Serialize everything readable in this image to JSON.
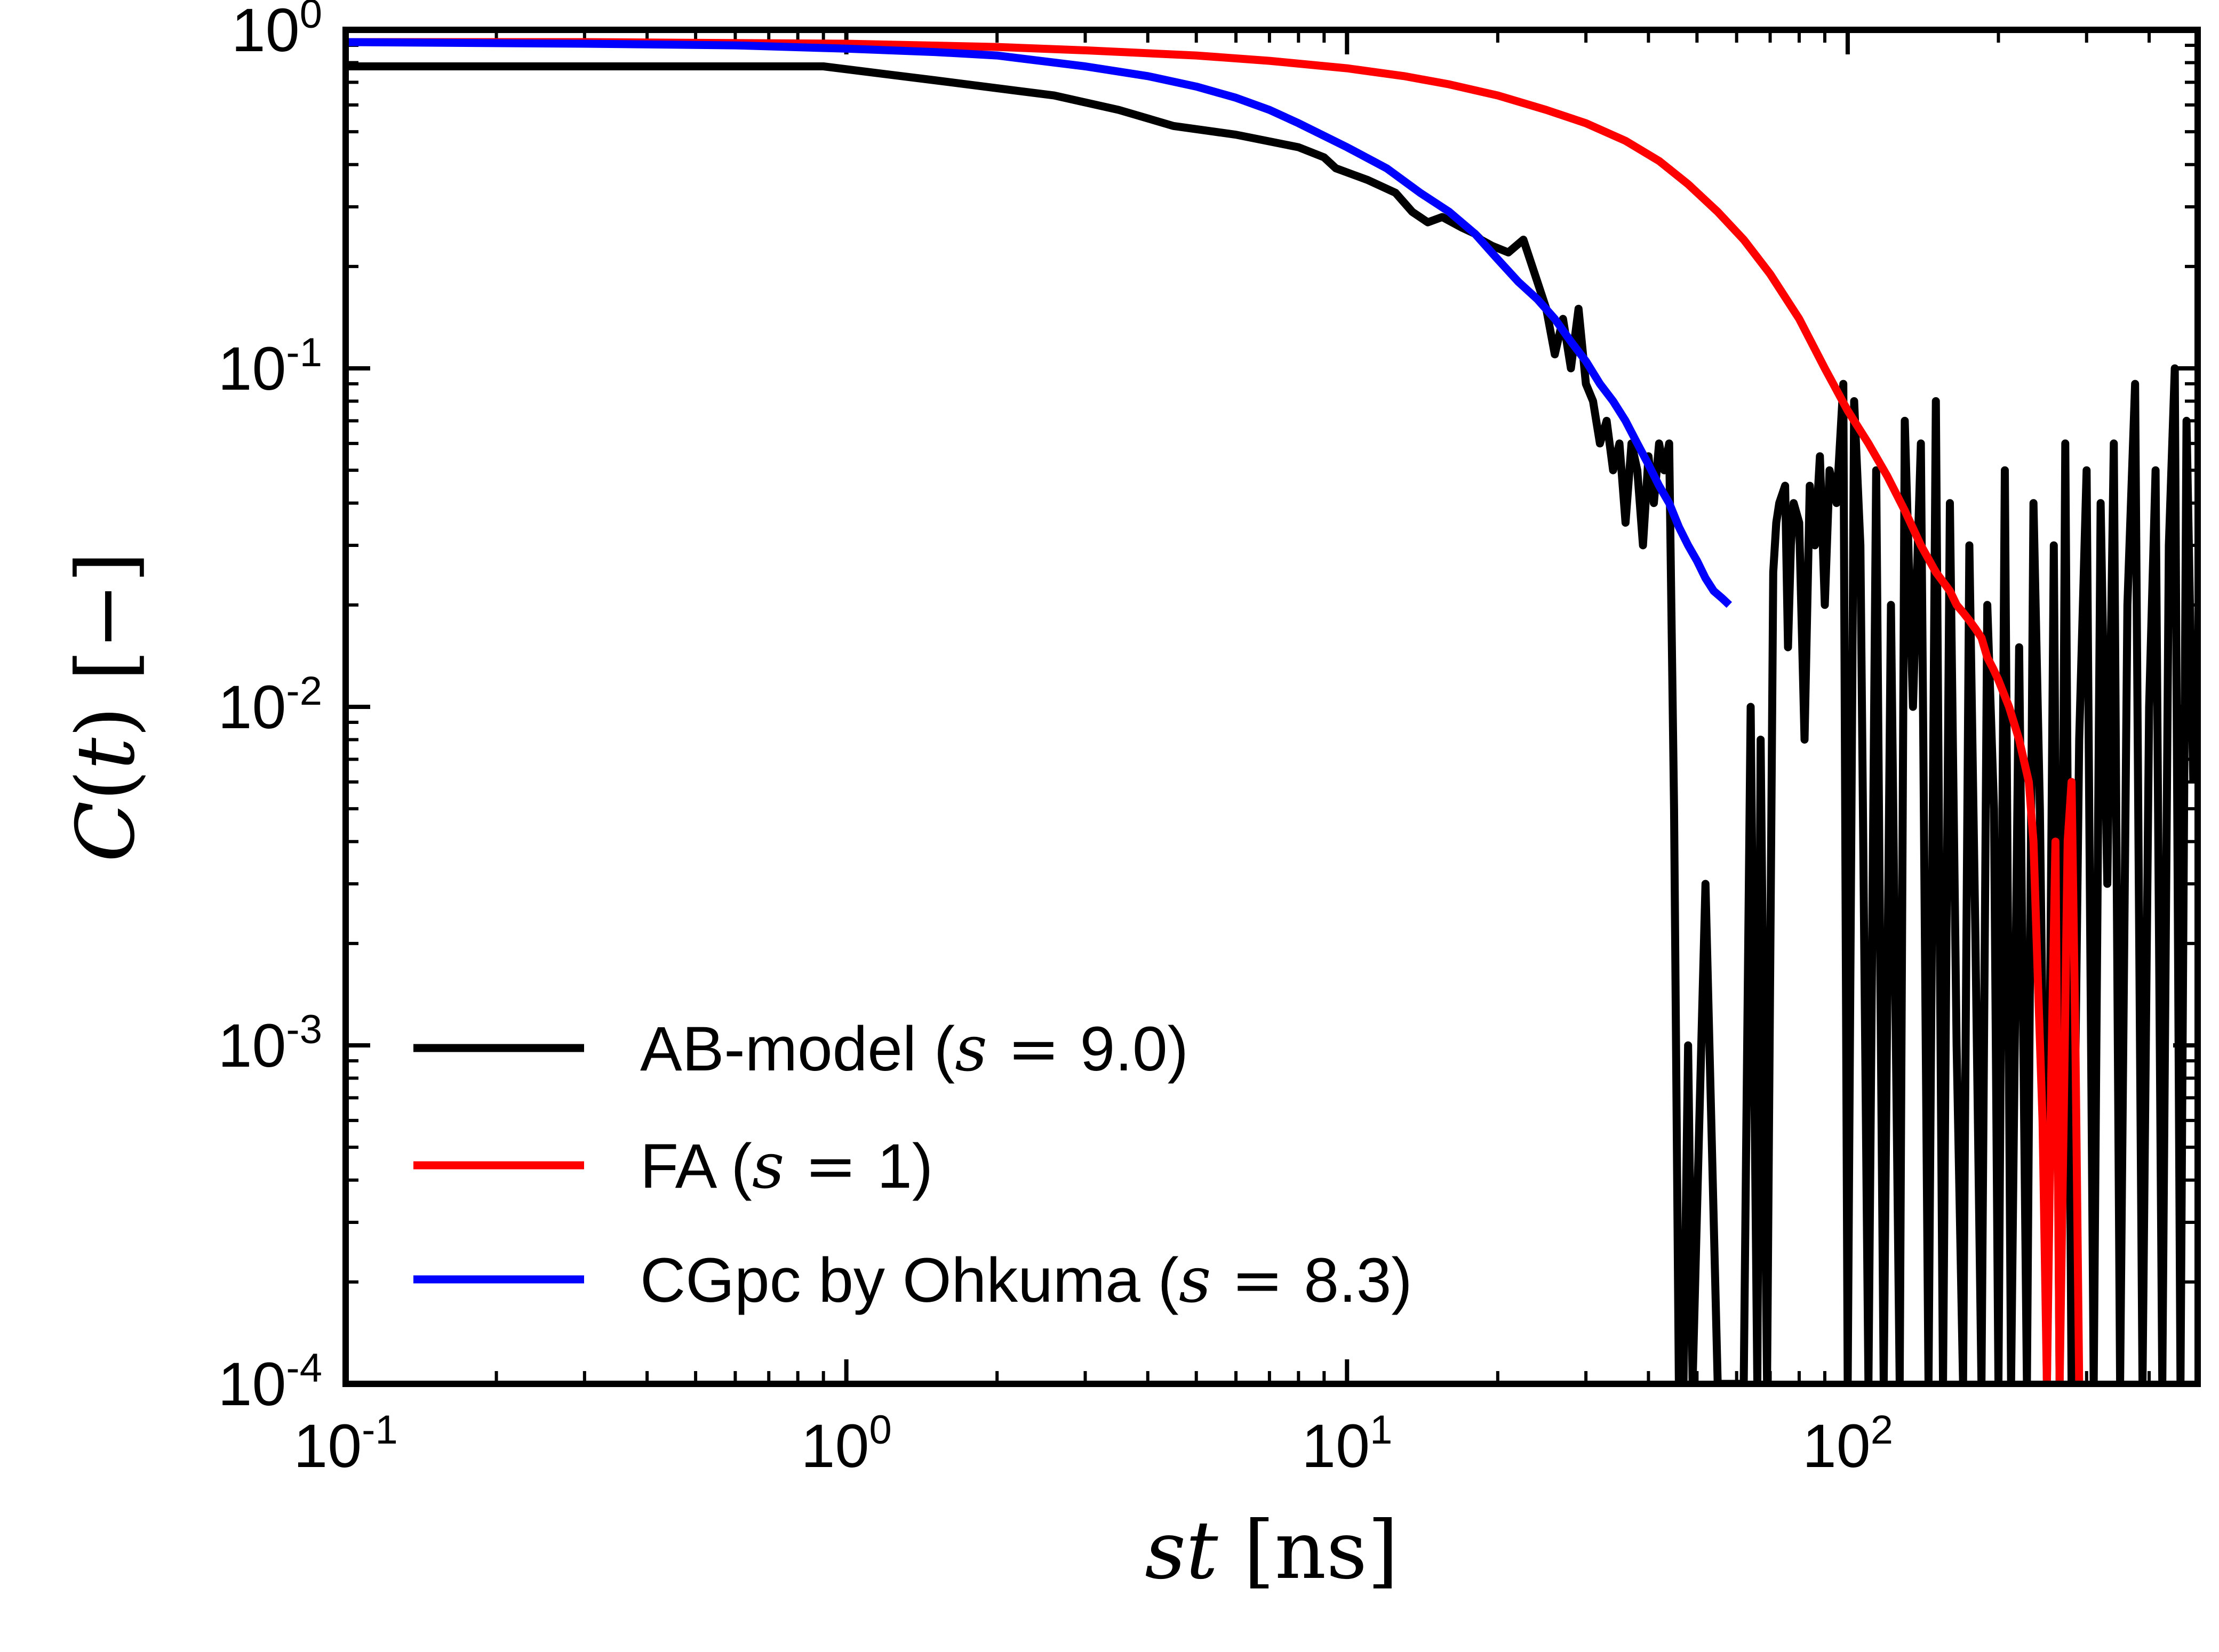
{
  "chart_data": {
    "type": "line",
    "xscale": "log",
    "yscale": "log",
    "xlim": [
      0.1,
      500
    ],
    "ylim": [
      0.0001,
      1
    ],
    "xlabel": "st [ns]",
    "ylabel": "C(t) [−]",
    "x_ticks": [
      {
        "base": "10",
        "exp": "-1",
        "value": 0.1
      },
      {
        "base": "10",
        "exp": "0",
        "value": 1
      },
      {
        "base": "10",
        "exp": "1",
        "value": 10
      },
      {
        "base": "10",
        "exp": "2",
        "value": 100
      }
    ],
    "y_ticks": [
      {
        "base": "10",
        "exp": "0",
        "value": 1
      },
      {
        "base": "10",
        "exp": "-1",
        "value": 0.1
      },
      {
        "base": "10",
        "exp": "-2",
        "value": 0.01
      },
      {
        "base": "10",
        "exp": "-3",
        "value": 0.001
      },
      {
        "base": "10",
        "exp": "-4",
        "value": 0.0001
      }
    ],
    "grid": false,
    "legend_position": "lower-left",
    "series": [
      {
        "name": "AB-model (s = 9.0)",
        "name_text": "AB-model (",
        "name_param": "s",
        "name_value": "9.0",
        "color": "#000000",
        "x": [
          0.1,
          0.3,
          0.9,
          1.5,
          2.6,
          3.5,
          4.5,
          6.0,
          8.0,
          9.0,
          9.5,
          11.0,
          12.5,
          13.5,
          14.5,
          15.5,
          17.0,
          18.0,
          18.5,
          19.5,
          21.0,
          22.5,
          24.0,
          25.0,
          26.0,
          27.0,
          28.0,
          29.0,
          30.0,
          31.0,
          32.0,
          33.0,
          34.0,
          35.0,
          36.0,
          37.0,
          38.0,
          39.0,
          40.0,
          41.0,
          42.0,
          43.0,
          44.0,
          45.0,
          46.0,
          47.0,
          48.0,
          49.0,
          51.0,
          52.0,
          55.0,
          58.0,
          62.0,
          64.0,
          66.0,
          67.0,
          69.0,
          71.0,
          72.0,
          73.0,
          75.0,
          76.0,
          77.0,
          78.0,
          80.0,
          82.0,
          84.0,
          86.0,
          88.0,
          90.0,
          92.0,
          95.0,
          98.0,
          100.0,
          103.0,
          106.0,
          110.0,
          114.0,
          118.0,
          122.0,
          127.0,
          130.0,
          135.0,
          140.0,
          145.0,
          150.0,
          155.0,
          160.0,
          165.0,
          170.0,
          175.0,
          180.0,
          185.0,
          190.0,
          196.0,
          200.0,
          206.0,
          212.0,
          220.0,
          228.0,
          235.0,
          242.0,
          250.0,
          258.0,
          265.0,
          272.0,
          280.0,
          290.0,
          300.0,
          310.0,
          320.0,
          330.0,
          340.0,
          350.0,
          362.0,
          375.0,
          388.0,
          400.0,
          412.0,
          425.0,
          438.0,
          450.0,
          462.0,
          475.0,
          490.0
        ],
        "y": [
          0.78,
          0.78,
          0.78,
          0.71,
          0.64,
          0.58,
          0.52,
          0.49,
          0.45,
          0.42,
          0.39,
          0.36,
          0.33,
          0.29,
          0.27,
          0.28,
          0.26,
          0.25,
          0.24,
          0.23,
          0.22,
          0.24,
          0.18,
          0.15,
          0.11,
          0.14,
          0.1,
          0.15,
          0.09,
          0.08,
          0.06,
          0.07,
          0.05,
          0.06,
          0.035,
          0.06,
          0.05,
          0.03,
          0.055,
          0.04,
          0.06,
          0.05,
          0.06,
          0.005,
          0.0001,
          0.0001,
          0.001,
          0.0001,
          0.001,
          0.003,
          0.0001,
          0.0001,
          0.0001,
          0.01,
          0.0001,
          0.008,
          0.0001,
          0.025,
          0.035,
          0.04,
          0.045,
          0.015,
          0.03,
          0.04,
          0.035,
          0.008,
          0.045,
          0.03,
          0.055,
          0.02,
          0.05,
          0.04,
          0.09,
          0.0001,
          0.08,
          0.03,
          0.0001,
          0.05,
          0.0001,
          0.02,
          0.0001,
          0.07,
          0.01,
          0.06,
          0.0001,
          0.08,
          0.0001,
          0.04,
          0.001,
          0.0001,
          0.03,
          0.002,
          0.0001,
          0.02,
          0.005,
          0.0001,
          0.05,
          0.0001,
          0.015,
          0.0001,
          0.04,
          0.005,
          0.0001,
          0.03,
          0.0001,
          0.06,
          0.0001,
          0.008,
          0.05,
          0.0001,
          0.04,
          0.003,
          0.06,
          0.0001,
          0.02,
          0.09,
          0.0001,
          0.01,
          0.05,
          0.0001,
          0.03,
          0.1,
          0.0001,
          0.07,
          0.006
        ],
        "line_width": 15
      },
      {
        "name": "FA (s = 1)",
        "name_text": "FA (",
        "name_param": "s",
        "name_value": "1",
        "color": "#ff0000",
        "x": [
          0.1,
          0.3,
          1,
          2,
          3,
          5,
          7,
          10,
          13,
          16,
          20,
          25,
          30,
          36,
          42,
          48,
          55,
          62,
          70,
          80,
          90,
          100,
          110,
          120,
          130,
          140,
          150,
          160,
          165,
          170,
          175,
          180,
          185,
          190,
          195,
          200,
          210,
          220,
          230,
          235,
          240,
          245,
          250,
          255,
          260,
          265,
          270,
          275,
          280,
          285,
          290,
          295
        ],
        "y": [
          0.92,
          0.92,
          0.91,
          0.89,
          0.87,
          0.84,
          0.81,
          0.77,
          0.73,
          0.69,
          0.64,
          0.58,
          0.53,
          0.47,
          0.41,
          0.35,
          0.29,
          0.24,
          0.19,
          0.14,
          0.1,
          0.075,
          0.06,
          0.048,
          0.038,
          0.03,
          0.025,
          0.022,
          0.02,
          0.019,
          0.018,
          0.017,
          0.016,
          0.014,
          0.013,
          0.012,
          0.01,
          0.008,
          0.006,
          0.004,
          0.0015,
          0.0006,
          0.0001,
          0.0008,
          0.004,
          0.0001,
          0.0006,
          0.004,
          0.006,
          0.001,
          0.0001,
          0.0001
        ],
        "line_width": 15
      },
      {
        "name": "CGpc by Ohkuma (s = 8.3)",
        "name_text": "CGpc by Ohkuma (",
        "name_param": "s",
        "name_value": "8.3",
        "color": "#0000ff",
        "x": [
          0.1,
          0.3,
          0.6,
          1.0,
          1.5,
          2.0,
          3.0,
          4.0,
          5.0,
          6.0,
          7.0,
          8.0,
          10.0,
          12.0,
          14.0,
          16.0,
          18.0,
          20.0,
          22.0,
          24.0,
          26.0,
          28.0,
          30.0,
          32.0,
          34.0,
          36.0,
          38.0,
          40.0,
          42.0,
          44.0,
          46.0,
          48.0,
          50.0,
          52.0,
          54.0,
          56.0,
          58.0
        ],
        "y": [
          0.92,
          0.91,
          0.9,
          0.88,
          0.86,
          0.84,
          0.78,
          0.73,
          0.68,
          0.63,
          0.58,
          0.53,
          0.45,
          0.39,
          0.33,
          0.29,
          0.25,
          0.21,
          0.18,
          0.16,
          0.14,
          0.12,
          0.105,
          0.09,
          0.08,
          0.07,
          0.06,
          0.052,
          0.045,
          0.04,
          0.034,
          0.03,
          0.027,
          0.024,
          0.022,
          0.021,
          0.02
        ],
        "line_width": 15
      }
    ]
  }
}
